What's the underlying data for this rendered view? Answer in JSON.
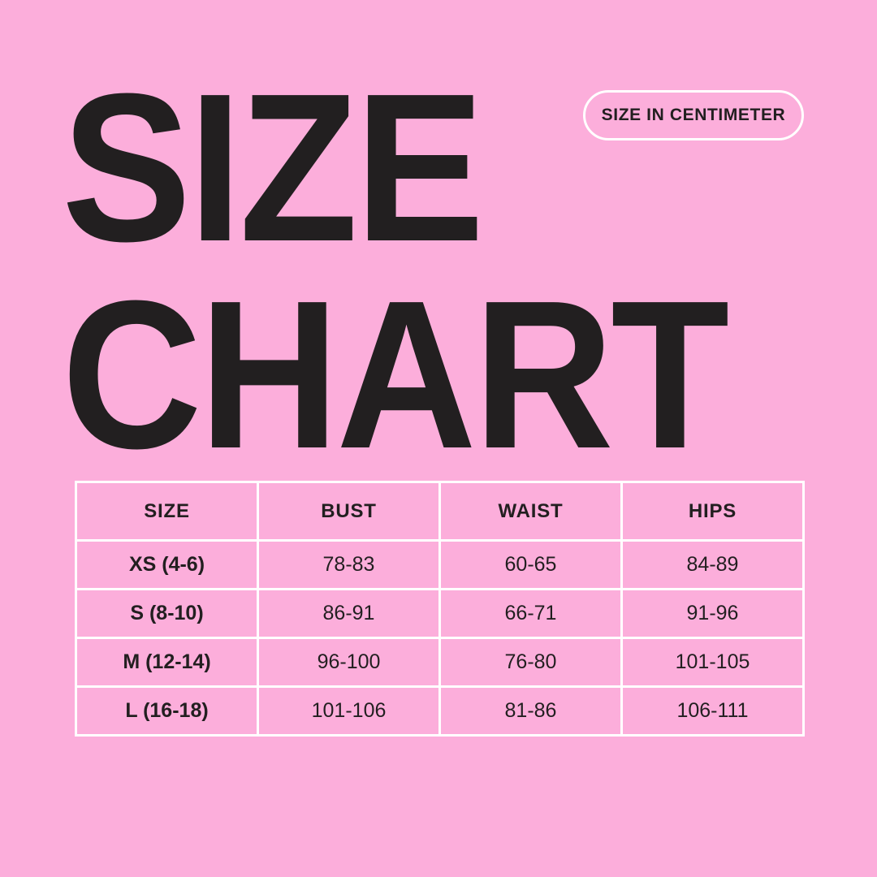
{
  "page": {
    "background_color": "#fcaedb",
    "text_color": "#221f20",
    "grid_line_color": "#ffffff"
  },
  "header": {
    "title_line1": "SIZE",
    "title_line2": "CHART",
    "badge_label": "SIZE IN CENTIMETER"
  },
  "chart_data": {
    "type": "table",
    "title": "SIZE CHART",
    "unit_note": "SIZE IN CENTIMETER",
    "columns": [
      "SIZE",
      "BUST",
      "WAIST",
      "HIPS"
    ],
    "rows": [
      [
        "XS (4-6)",
        "78-83",
        "60-65",
        "84-89"
      ],
      [
        "S (8-10)",
        "86-91",
        "66-71",
        "91-96"
      ],
      [
        "M (12-14)",
        "96-100",
        "76-80",
        "101-105"
      ],
      [
        "L (16-18)",
        "101-106",
        "81-86",
        "106-111"
      ]
    ]
  }
}
